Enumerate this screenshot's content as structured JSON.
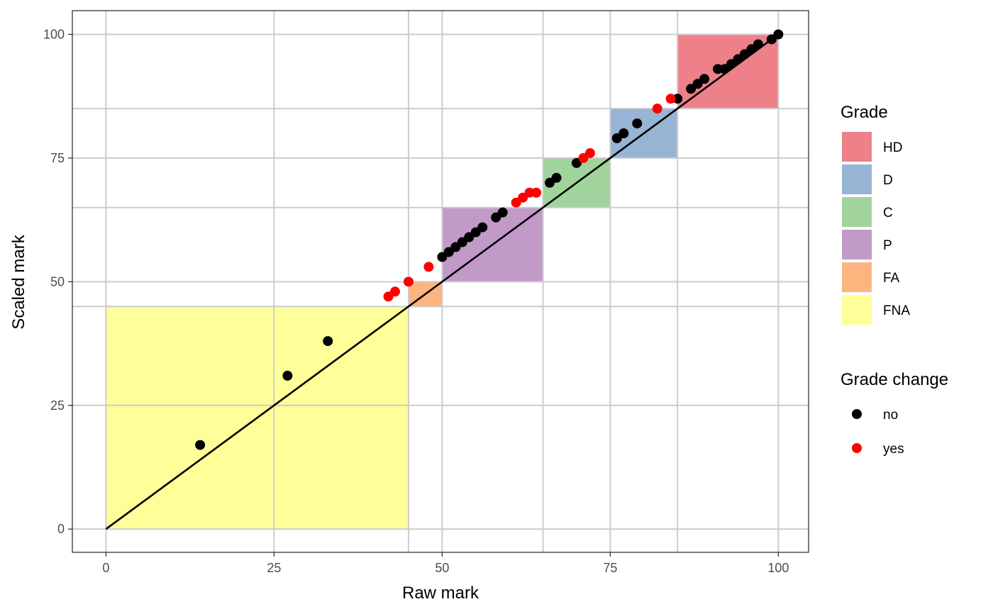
{
  "chart_data": {
    "type": "scatter",
    "xlabel": "Raw mark",
    "ylabel": "Scaled mark",
    "xlim": [
      -5,
      104.5
    ],
    "ylim": [
      -4.7,
      104.8
    ],
    "x_ticks": [
      0,
      25,
      50,
      75,
      100
    ],
    "y_ticks": [
      0,
      25,
      50,
      75,
      100
    ],
    "x_tick_labels": [
      "0",
      "25",
      "50",
      "75",
      "100"
    ],
    "y_tick_labels": [
      "0",
      "25",
      "50",
      "75",
      "100"
    ],
    "x_minor_gridlines": [
      45,
      65,
      85
    ],
    "y_minor_gridlines": [
      45,
      65,
      85
    ],
    "grid": true,
    "grade_regions": [
      {
        "grade": "FNA",
        "raw_from": 0,
        "raw_to": 45,
        "scaled_from": 0,
        "scaled_to": 45,
        "color": "#FFFF99"
      },
      {
        "grade": "FA",
        "raw_from": 45,
        "raw_to": 50,
        "scaled_from": 45,
        "scaled_to": 50,
        "color": "#FDB57F"
      },
      {
        "grade": "P",
        "raw_from": 50,
        "raw_to": 65,
        "scaled_from": 50,
        "scaled_to": 65,
        "color": "#C19AC8"
      },
      {
        "grade": "C",
        "raw_from": 65,
        "raw_to": 75,
        "scaled_from": 65,
        "scaled_to": 75,
        "color": "#A1D39C"
      },
      {
        "grade": "D",
        "raw_from": 75,
        "raw_to": 85,
        "scaled_from": 75,
        "scaled_to": 85,
        "color": "#97B4D4"
      },
      {
        "grade": "HD",
        "raw_from": 85,
        "raw_to": 100,
        "scaled_from": 85,
        "scaled_to": 100,
        "color": "#EE808A"
      }
    ],
    "reference_line": {
      "x": [
        0,
        100
      ],
      "y": [
        0,
        100
      ],
      "color": "#000000"
    },
    "series": [
      {
        "name": "no",
        "color": "#000000",
        "points": [
          [
            14,
            17
          ],
          [
            27,
            31
          ],
          [
            33,
            38
          ],
          [
            50,
            55
          ],
          [
            51,
            56
          ],
          [
            52,
            57
          ],
          [
            53,
            58
          ],
          [
            54,
            59
          ],
          [
            55,
            60
          ],
          [
            56,
            61
          ],
          [
            58,
            63
          ],
          [
            59,
            64
          ],
          [
            66,
            70
          ],
          [
            67,
            71
          ],
          [
            70,
            74
          ],
          [
            76,
            79
          ],
          [
            77,
            80
          ],
          [
            79,
            82
          ],
          [
            85,
            87
          ],
          [
            87,
            89
          ],
          [
            88,
            90
          ],
          [
            89,
            91
          ],
          [
            91,
            93
          ],
          [
            92,
            93
          ],
          [
            93,
            94
          ],
          [
            94,
            95
          ],
          [
            95,
            96
          ],
          [
            96,
            97
          ],
          [
            97,
            98
          ],
          [
            99,
            99
          ],
          [
            100,
            100
          ]
        ]
      },
      {
        "name": "yes",
        "color": "#FF0000",
        "points": [
          [
            42,
            47
          ],
          [
            43,
            48
          ],
          [
            45,
            50
          ],
          [
            48,
            53
          ],
          [
            61,
            66
          ],
          [
            62,
            67
          ],
          [
            63,
            68
          ],
          [
            64,
            68
          ],
          [
            71,
            75
          ],
          [
            72,
            76
          ],
          [
            82,
            85
          ],
          [
            84,
            87
          ]
        ]
      }
    ],
    "legend": {
      "placement": "right",
      "grade_title": "Grade",
      "grade_items": [
        {
          "label": "HD",
          "color": "#EE808A"
        },
        {
          "label": "D",
          "color": "#97B4D4"
        },
        {
          "label": "C",
          "color": "#A1D39C"
        },
        {
          "label": "P",
          "color": "#C19AC8"
        },
        {
          "label": "FA",
          "color": "#FDB57F"
        },
        {
          "label": "FNA",
          "color": "#FFFF99"
        }
      ],
      "change_title": "Grade change",
      "change_items": [
        {
          "label": "no",
          "color": "#000000"
        },
        {
          "label": "yes",
          "color": "#FF0000"
        }
      ]
    }
  }
}
